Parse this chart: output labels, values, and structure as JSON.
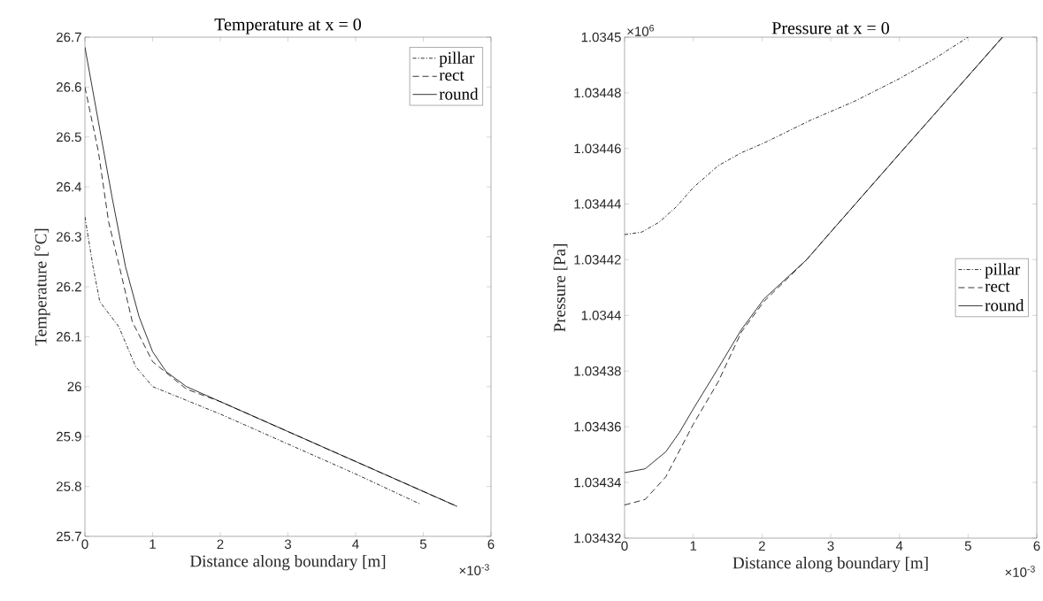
{
  "chart_data": [
    {
      "type": "line",
      "title": "Temperature at x = 0",
      "xlabel": "Distance along boundary [m]",
      "ylabel": "Temperature [°C]",
      "xlim": [
        0,
        6
      ],
      "xticks": [
        0,
        1,
        2,
        3,
        4,
        5,
        6
      ],
      "ylim": [
        25.7,
        26.7
      ],
      "yticks": [
        25.7,
        25.8,
        25.9,
        26,
        26.1,
        26.2,
        26.3,
        26.4,
        26.5,
        26.6,
        26.7
      ],
      "legend": "top right",
      "annotations": [
        "×10$^{-3}$"
      ],
      "series": [
        {
          "name": "pillar",
          "color": "#000000",
          "line_style": "dashdot",
          "x": [
            0,
            0.12,
            0.22,
            0.5,
            0.75,
            1,
            2,
            3,
            4,
            4.95
          ],
          "values": [
            26.34,
            26.24,
            26.17,
            26.12,
            26.04,
            26.0,
            25.945,
            25.885,
            25.825,
            25.765
          ]
        },
        {
          "name": "rect",
          "color": "#000000",
          "line_style": "dashed",
          "x": [
            0,
            0.2,
            0.35,
            0.51,
            0.7,
            1,
            1.5,
            2,
            3,
            4,
            5,
            5.5
          ],
          "values": [
            26.6,
            26.47,
            26.33,
            26.24,
            26.13,
            26.05,
            25.995,
            25.97,
            25.91,
            25.85,
            25.79,
            25.76
          ]
        },
        {
          "name": "round",
          "color": "#000000",
          "line_style": "solid",
          "x": [
            0,
            0.2,
            0.4,
            0.6,
            0.8,
            1,
            1.2,
            1.5,
            2,
            3,
            4,
            5,
            5.5
          ],
          "values": [
            26.68,
            26.53,
            26.38,
            26.24,
            26.14,
            26.07,
            26.03,
            26.0,
            25.97,
            25.91,
            25.85,
            25.79,
            25.76
          ]
        }
      ]
    },
    {
      "type": "line",
      "title": "Pressure at x = 0",
      "xlabel": "Distance along boundary [m]",
      "ylabel": "Pressure [Pa]",
      "xlim": [
        0,
        6
      ],
      "xticks": [
        0,
        1,
        2,
        3,
        4,
        5,
        6
      ],
      "ylim": [
        1.03432,
        1.0345
      ],
      "yticks": [
        1.03432,
        1.03434,
        1.03436,
        1.03438,
        1.0344,
        1.03442,
        1.03444,
        1.03446,
        1.03448,
        1.0345
      ],
      "legend": "right",
      "annotations": [
        "×10$^{6}$",
        "×10$^{-3}$"
      ],
      "series": [
        {
          "name": "pillar",
          "color": "#000000",
          "line_style": "dashdot",
          "x": [
            0,
            0.25,
            0.5,
            0.75,
            1,
            1.36,
            1.7,
            2.03,
            2.7,
            3.35,
            4,
            4.5,
            5
          ],
          "values": [
            1.034429,
            1.03443,
            1.0344335,
            1.034439,
            1.034446,
            1.0344538,
            1.0344585,
            1.034462,
            1.03447,
            1.034477,
            1.034485,
            1.034492,
            1.0345
          ]
        },
        {
          "name": "rect",
          "color": "#000000",
          "line_style": "dashed",
          "x": [
            0,
            0.3,
            0.6,
            1,
            1.36,
            1.7,
            2.03,
            2.65,
            3,
            4,
            5,
            5.5
          ],
          "values": [
            1.034332,
            1.034334,
            1.034342,
            1.034361,
            1.034376,
            1.034394,
            1.034405,
            1.03442,
            1.03443,
            1.034458,
            1.034486,
            1.0345
          ]
        },
        {
          "name": "round",
          "color": "#000000",
          "line_style": "solid",
          "x": [
            0,
            0.3,
            0.6,
            0.8,
            1,
            1.36,
            1.7,
            2.03,
            2.65,
            3,
            4,
            5,
            5.5
          ],
          "values": [
            1.0343435,
            1.034345,
            1.034351,
            1.034358,
            1.0343665,
            1.034381,
            1.034395,
            1.034406,
            1.03442,
            1.03443,
            1.034458,
            1.034486,
            1.0345
          ]
        }
      ]
    }
  ]
}
